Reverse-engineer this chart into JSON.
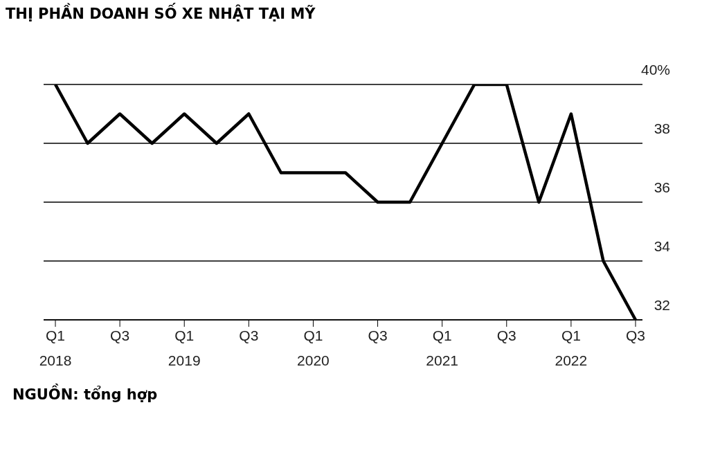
{
  "chart_data": {
    "type": "line",
    "title": "THỊ PHẦN DOANH SỐ XE NHẬT TẠI MỸ",
    "categories": [
      "Q1 2018",
      null,
      "Q3",
      null,
      "Q1 2019",
      null,
      "Q3",
      null,
      "Q1 2020",
      null,
      "Q3",
      null,
      "Q1 2021",
      null,
      "Q3",
      null,
      "Q1 2022",
      null,
      "Q3"
    ],
    "series": [
      {
        "color": "#000000",
        "values": [
          40,
          38,
          39,
          38,
          39,
          38,
          39,
          37,
          37,
          37,
          36,
          36,
          38,
          40,
          40,
          36,
          39,
          34,
          32
        ]
      }
    ],
    "ylim": [
      32,
      40
    ],
    "yticks": [
      {
        "value": 32,
        "label": "32"
      },
      {
        "value": 34,
        "label": "34"
      },
      {
        "value": 36,
        "label": "36"
      },
      {
        "value": 38,
        "label": "38"
      },
      {
        "value": 40,
        "label": "40%"
      }
    ],
    "grid": "y",
    "legend": false,
    "marker": "none",
    "line_style": "solid",
    "annotations": [
      "NGUỒN: tổng hợp"
    ]
  }
}
